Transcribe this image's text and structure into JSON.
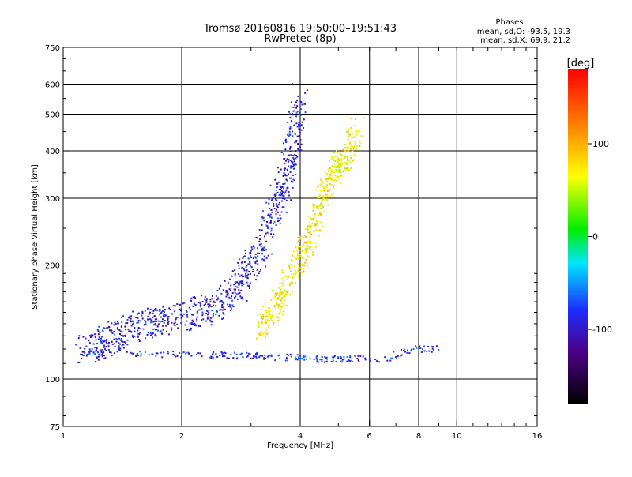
{
  "chart_data": {
    "type": "scatter",
    "title": "Tromsø 20160816 19:50:00–19:51:43",
    "subtitle": "RwPretec (8p)",
    "xlabel": "Frequency [MHz]",
    "ylabel": "Stationary phase Virtual Height [km]",
    "x_scale": "log",
    "y_scale": "log",
    "xlim": [
      1,
      16
    ],
    "ylim": [
      75,
      750
    ],
    "x_ticks": [
      {
        "value": 1,
        "label": "1"
      },
      {
        "value": 2,
        "label": "2"
      },
      {
        "value": 4,
        "label": "4"
      },
      {
        "value": 6,
        "label": "6"
      },
      {
        "value": 8,
        "label": "8"
      },
      {
        "value": 10,
        "label": "10"
      },
      {
        "value": 16,
        "label": "16"
      }
    ],
    "x_gridlines": [
      2,
      4,
      6,
      8,
      10
    ],
    "y_ticks": [
      {
        "value": 75,
        "label": "75"
      },
      {
        "value": 100,
        "label": "100"
      },
      {
        "value": 200,
        "label": "200"
      },
      {
        "value": 300,
        "label": "300"
      },
      {
        "value": 400,
        "label": "400"
      },
      {
        "value": 500,
        "label": "500"
      },
      {
        "value": 600,
        "label": "600"
      },
      {
        "value": 750,
        "label": "750"
      }
    ],
    "y_gridlines": [
      100,
      200,
      300,
      400,
      500,
      600
    ],
    "legend": {
      "title": "Phases",
      "lines": [
        "mean, sd,O: -93.5, 19.3",
        "mean, sd,X: 69.9, 21.2"
      ],
      "placement": "top-right"
    },
    "colorbar": {
      "label": "[deg]",
      "range": [
        -180,
        180
      ],
      "ticks": [
        {
          "value": 100,
          "label": "100"
        },
        {
          "value": 0,
          "label": "0"
        },
        {
          "value": -100,
          "label": "-100"
        }
      ]
    },
    "series": [
      {
        "name": "O-mode traces (blue, ~-93.5 deg)",
        "phase_deg": -93.5,
        "x": [
          1.12,
          1.25,
          1.4,
          1.55,
          1.75,
          1.95,
          2.2,
          2.5,
          2.8,
          3.0,
          3.3,
          3.5,
          3.7,
          3.85,
          4.0
        ],
        "y": [
          118,
          125,
          132,
          138,
          142,
          145,
          150,
          158,
          175,
          200,
          240,
          290,
          350,
          420,
          560
        ]
      },
      {
        "name": "X-mode traces (yellow, ~69.9 deg)",
        "phase_deg": 69.9,
        "x": [
          3.2,
          3.4,
          3.6,
          3.9,
          4.1,
          4.3,
          4.5,
          4.8,
          5.0,
          5.3,
          5.6
        ],
        "y": [
          135,
          150,
          170,
          200,
          220,
          250,
          300,
          340,
          370,
          390,
          470
        ]
      },
      {
        "name": "E-layer echoes (~115 km)",
        "phase_deg": -80,
        "x": [
          1.1,
          1.5,
          2.0,
          2.5,
          3.0,
          3.5,
          4.0,
          4.5,
          5.0,
          5.5,
          6.5,
          8.0,
          9.0
        ],
        "y": [
          118,
          117,
          116,
          116,
          115,
          114,
          114,
          113,
          113,
          113,
          113,
          120,
          120
        ]
      }
    ]
  }
}
